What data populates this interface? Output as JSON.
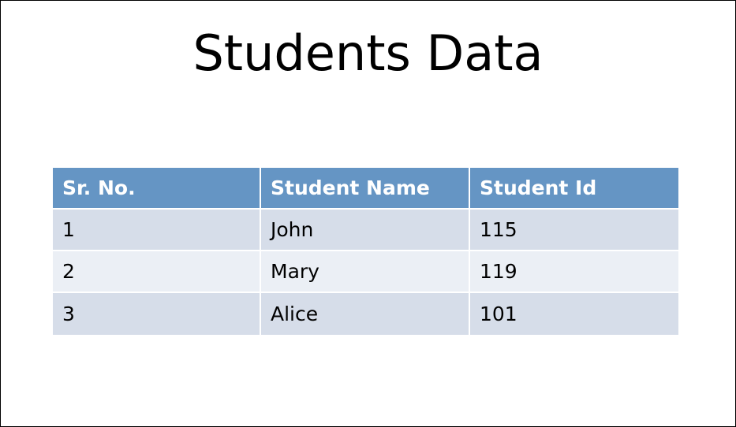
{
  "slide": {
    "title": "Students Data"
  },
  "table": {
    "headers": [
      "Sr. No.",
      "Student Name",
      "Student Id"
    ],
    "rows": [
      [
        "1",
        "John",
        "115"
      ],
      [
        "2",
        "Mary",
        "119"
      ],
      [
        "3",
        "Alice",
        "101"
      ]
    ]
  },
  "colors": {
    "header_bg": "#6595c4",
    "row_odd_bg": "#d6dde9",
    "row_even_bg": "#ebeff5"
  }
}
